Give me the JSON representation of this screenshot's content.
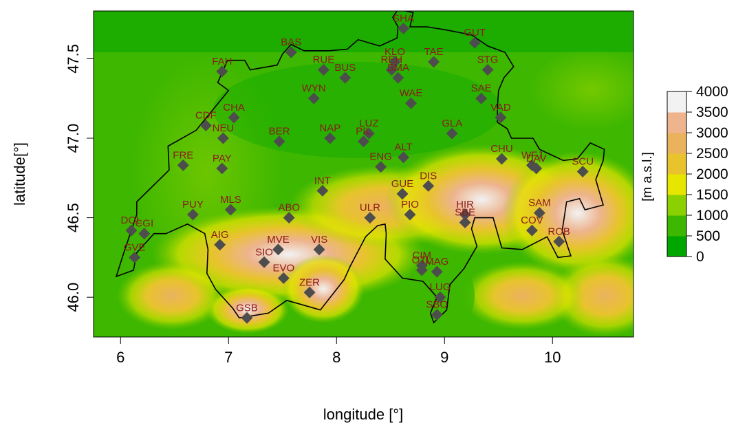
{
  "chart_data": {
    "type": "map",
    "xlabel": "longitude [°]",
    "ylabel": "latitude[°]",
    "xlim": [
      5.75,
      10.75
    ],
    "ylim": [
      45.75,
      47.8
    ],
    "x_ticks": [
      6,
      7,
      8,
      9,
      10
    ],
    "y_ticks": [
      46.0,
      46.5,
      47.0,
      47.5
    ],
    "x_tick_labels": [
      "6",
      "7",
      "8",
      "9",
      "10"
    ],
    "y_tick_labels": [
      "46.0",
      "46.5",
      "47.0",
      "47.5"
    ],
    "legend": {
      "title": "[m a.s.l.]",
      "placement": "right",
      "breaks": [
        0,
        500,
        1000,
        1500,
        2000,
        2500,
        3000,
        3500,
        4000
      ],
      "tick_labels": [
        "0",
        "500",
        "1000",
        "1500",
        "2000",
        "2500",
        "3000",
        "3500",
        "4000"
      ],
      "colors": [
        "#00a600",
        "#3eb700",
        "#8bd000",
        "#e6e600",
        "#e8c32e",
        "#ebb25e",
        "#edb48e",
        "#f2f2f2"
      ]
    },
    "colors": {
      "station_marker": "#4d4d4d",
      "station_label": "#8b1a1a",
      "border": "#000000"
    },
    "stations": [
      {
        "code": "SHA",
        "lon": 8.62,
        "lat": 47.69
      },
      {
        "code": "GUT",
        "lon": 9.28,
        "lat": 47.6
      },
      {
        "code": "BAS",
        "lon": 7.58,
        "lat": 47.54
      },
      {
        "code": "KLO",
        "lon": 8.54,
        "lat": 47.48
      },
      {
        "code": "TAE",
        "lon": 8.9,
        "lat": 47.48
      },
      {
        "code": "FAH",
        "lon": 6.94,
        "lat": 47.42
      },
      {
        "code": "RUE",
        "lon": 7.88,
        "lat": 47.43
      },
      {
        "code": "REH",
        "lon": 8.51,
        "lat": 47.43
      },
      {
        "code": "SMA",
        "lon": 8.57,
        "lat": 47.38
      },
      {
        "code": "STG",
        "lon": 9.4,
        "lat": 47.43
      },
      {
        "code": "BUS",
        "lon": 8.08,
        "lat": 47.38
      },
      {
        "code": "WYN",
        "lon": 7.79,
        "lat": 47.25
      },
      {
        "code": "WAE",
        "lon": 8.69,
        "lat": 47.22
      },
      {
        "code": "SAE",
        "lon": 9.34,
        "lat": 47.25
      },
      {
        "code": "VAD",
        "lon": 9.52,
        "lat": 47.13
      },
      {
        "code": "CHA",
        "lon": 7.05,
        "lat": 47.13
      },
      {
        "code": "CDF",
        "lon": 6.79,
        "lat": 47.08
      },
      {
        "code": "NEU",
        "lon": 6.95,
        "lat": 47.0
      },
      {
        "code": "LUZ",
        "lon": 8.3,
        "lat": 47.03
      },
      {
        "code": "GLA",
        "lon": 9.07,
        "lat": 47.03
      },
      {
        "code": "BER",
        "lon": 7.47,
        "lat": 46.98
      },
      {
        "code": "NAP",
        "lon": 7.94,
        "lat": 47.0
      },
      {
        "code": "PIL",
        "lon": 8.25,
        "lat": 46.98
      },
      {
        "code": "ALT",
        "lon": 8.62,
        "lat": 46.88
      },
      {
        "code": "CHU",
        "lon": 9.53,
        "lat": 46.87
      },
      {
        "code": "WFJ",
        "lon": 9.81,
        "lat": 46.83
      },
      {
        "code": "DAV",
        "lon": 9.85,
        "lat": 46.81
      },
      {
        "code": "SCU",
        "lon": 10.28,
        "lat": 46.79
      },
      {
        "code": "FRE",
        "lon": 6.58,
        "lat": 46.83
      },
      {
        "code": "PAY",
        "lon": 6.94,
        "lat": 46.81
      },
      {
        "code": "ENG",
        "lon": 8.41,
        "lat": 46.82
      },
      {
        "code": "DIS",
        "lon": 8.85,
        "lat": 46.7
      },
      {
        "code": "GUE",
        "lon": 8.61,
        "lat": 46.65
      },
      {
        "code": "INT",
        "lon": 7.87,
        "lat": 46.67
      },
      {
        "code": "MLS",
        "lon": 7.02,
        "lat": 46.55
      },
      {
        "code": "PUY",
        "lon": 6.67,
        "lat": 46.52
      },
      {
        "code": "ABO",
        "lon": 7.56,
        "lat": 46.5
      },
      {
        "code": "ULR",
        "lon": 8.31,
        "lat": 46.5
      },
      {
        "code": "PIO",
        "lon": 8.68,
        "lat": 46.52
      },
      {
        "code": "HIR",
        "lon": 9.19,
        "lat": 46.52
      },
      {
        "code": "SBE",
        "lon": 9.19,
        "lat": 46.47
      },
      {
        "code": "SAM",
        "lon": 9.88,
        "lat": 46.53
      },
      {
        "code": "COV",
        "lon": 9.81,
        "lat": 46.42
      },
      {
        "code": "ROB",
        "lon": 10.06,
        "lat": 46.35
      },
      {
        "code": "DOL",
        "lon": 6.1,
        "lat": 46.42
      },
      {
        "code": "CGI",
        "lon": 6.22,
        "lat": 46.4
      },
      {
        "code": "GVE",
        "lon": 6.13,
        "lat": 46.25
      },
      {
        "code": "AIG",
        "lon": 6.92,
        "lat": 46.33
      },
      {
        "code": "MVE",
        "lon": 7.46,
        "lat": 46.3
      },
      {
        "code": "VIS",
        "lon": 7.84,
        "lat": 46.3
      },
      {
        "code": "SIO",
        "lon": 7.33,
        "lat": 46.22
      },
      {
        "code": "EVO",
        "lon": 7.51,
        "lat": 46.12
      },
      {
        "code": "CIM",
        "lon": 8.79,
        "lat": 46.2
      },
      {
        "code": "OTL",
        "lon": 8.79,
        "lat": 46.17
      },
      {
        "code": "MAG",
        "lon": 8.93,
        "lat": 46.16
      },
      {
        "code": "ZER",
        "lon": 7.75,
        "lat": 46.03
      },
      {
        "code": "LUG",
        "lon": 8.96,
        "lat": 46.0
      },
      {
        "code": "GSB",
        "lon": 7.17,
        "lat": 45.87
      },
      {
        "code": "SBO",
        "lon": 8.93,
        "lat": 45.89
      }
    ],
    "border": [
      [
        8.57,
        47.81
      ],
      [
        8.71,
        47.79
      ],
      [
        8.68,
        47.7
      ],
      [
        8.84,
        47.7
      ],
      [
        9.02,
        47.68
      ],
      [
        9.25,
        47.65
      ],
      [
        9.4,
        47.58
      ],
      [
        9.56,
        47.54
      ],
      [
        9.64,
        47.45
      ],
      [
        9.55,
        47.38
      ],
      [
        9.5,
        47.3
      ],
      [
        9.49,
        47.2
      ],
      [
        9.49,
        47.1
      ],
      [
        9.58,
        47.06
      ],
      [
        9.62,
        47.0
      ],
      [
        9.82,
        47.0
      ],
      [
        9.88,
        46.93
      ],
      [
        10.1,
        46.86
      ],
      [
        10.23,
        46.87
      ],
      [
        10.35,
        46.97
      ],
      [
        10.48,
        46.93
      ],
      [
        10.47,
        46.86
      ],
      [
        10.4,
        46.74
      ],
      [
        10.47,
        46.58
      ],
      [
        10.3,
        46.55
      ],
      [
        10.25,
        46.62
      ],
      [
        10.13,
        46.6
      ],
      [
        10.09,
        46.42
      ],
      [
        10.17,
        46.26
      ],
      [
        10.05,
        46.25
      ],
      [
        9.95,
        46.38
      ],
      [
        9.72,
        46.3
      ],
      [
        9.53,
        46.31
      ],
      [
        9.45,
        46.5
      ],
      [
        9.28,
        46.5
      ],
      [
        9.25,
        46.43
      ],
      [
        9.3,
        46.32
      ],
      [
        9.18,
        46.18
      ],
      [
        9.05,
        46.08
      ],
      [
        9.02,
        45.92
      ],
      [
        8.9,
        45.84
      ],
      [
        8.87,
        45.9
      ],
      [
        8.93,
        46.0
      ],
      [
        8.8,
        46.1
      ],
      [
        8.61,
        46.12
      ],
      [
        8.45,
        46.24
      ],
      [
        8.46,
        46.4
      ],
      [
        8.45,
        46.46
      ],
      [
        8.38,
        46.45
      ],
      [
        8.27,
        46.38
      ],
      [
        8.13,
        46.2
      ],
      [
        8.07,
        46.11
      ],
      [
        7.85,
        45.92
      ],
      [
        7.54,
        45.98
      ],
      [
        7.37,
        45.9
      ],
      [
        7.1,
        45.87
      ],
      [
        7.04,
        45.93
      ],
      [
        6.88,
        46.05
      ],
      [
        6.8,
        46.15
      ],
      [
        6.81,
        46.3
      ],
      [
        6.78,
        46.4
      ],
      [
        6.62,
        46.46
      ],
      [
        6.42,
        46.4
      ],
      [
        6.31,
        46.4
      ],
      [
        6.15,
        46.28
      ],
      [
        6.12,
        46.17
      ],
      [
        5.96,
        46.13
      ],
      [
        6.03,
        46.28
      ],
      [
        6.15,
        46.52
      ],
      [
        6.15,
        46.6
      ],
      [
        6.45,
        46.8
      ],
      [
        6.44,
        46.95
      ],
      [
        6.7,
        47.05
      ],
      [
        6.82,
        47.15
      ],
      [
        7.0,
        47.3
      ],
      [
        6.9,
        47.35
      ],
      [
        6.99,
        47.49
      ],
      [
        7.15,
        47.49
      ],
      [
        7.2,
        47.43
      ],
      [
        7.45,
        47.46
      ],
      [
        7.5,
        47.53
      ],
      [
        7.58,
        47.59
      ],
      [
        7.7,
        47.55
      ],
      [
        7.93,
        47.55
      ],
      [
        8.1,
        47.56
      ],
      [
        8.2,
        47.62
      ],
      [
        8.4,
        47.58
      ],
      [
        8.56,
        47.63
      ],
      [
        8.57,
        47.7
      ],
      [
        8.52,
        47.76
      ],
      [
        8.57,
        47.81
      ]
    ]
  }
}
